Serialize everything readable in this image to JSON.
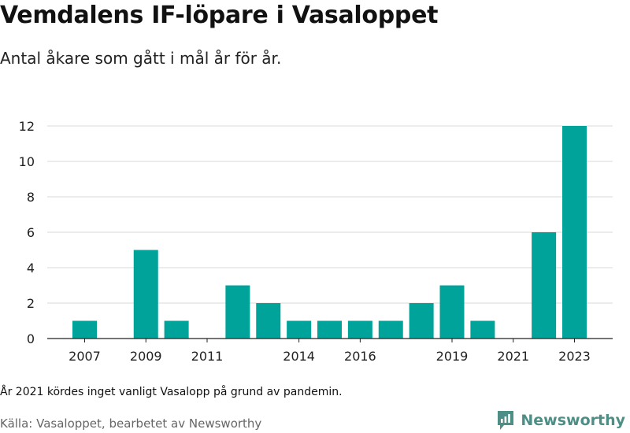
{
  "title": "Vemdalens IF-löpare i Vasaloppet",
  "subtitle": "Antal åkare som gått i mål år för år.",
  "note": "År 2021 kördes inget vanligt Vasalopp på grund av pandemin.",
  "source": "Källa: Vasaloppet, bearbetet av Newsworthy",
  "brand": {
    "name": "Newsworthy",
    "icon": "newsworthy-logo-icon",
    "color": "#4d8e86"
  },
  "chart_data": {
    "type": "bar",
    "categories": [
      "2007",
      "2008",
      "2009",
      "2010",
      "2011",
      "2012",
      "2013",
      "2014",
      "2015",
      "2016",
      "2017",
      "2018",
      "2019",
      "2020",
      "2021",
      "2022",
      "2023"
    ],
    "values": [
      1,
      0,
      5,
      1,
      0,
      3,
      2,
      1,
      1,
      1,
      1,
      2,
      3,
      1,
      0,
      6,
      12
    ],
    "x_tick_labels": [
      "2007",
      "2009",
      "2011",
      "2014",
      "2016",
      "2019",
      "2021",
      "2023"
    ],
    "y_ticks": [
      0,
      2,
      4,
      6,
      8,
      10,
      12
    ],
    "ylim": [
      0,
      12
    ],
    "xlabel": "",
    "ylabel": "",
    "bar_color": "#00a39a",
    "grid": true
  }
}
